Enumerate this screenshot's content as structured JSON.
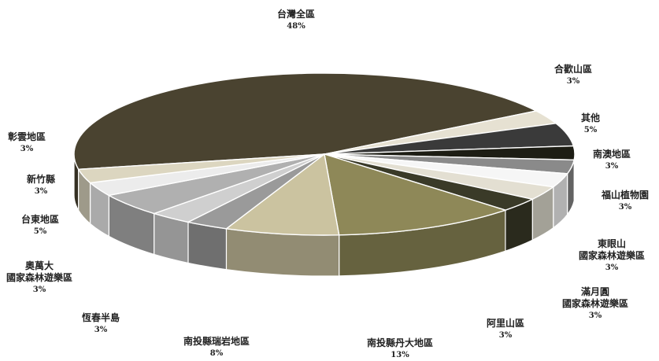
{
  "chart_data": {
    "type": "pie",
    "style": "3d-exploded",
    "slices": [
      {
        "label": [
          "台灣全區"
        ],
        "pct_label": "48%",
        "value": 48,
        "color": "#4a4330"
      },
      {
        "label": [
          "合歡山區"
        ],
        "pct_label": "3%",
        "value": 3,
        "color": "#e6e1d2"
      },
      {
        "label": [
          "其他"
        ],
        "pct_label": "5%",
        "value": 5,
        "color": "#3a3a3a"
      },
      {
        "label": [
          "南澳地區"
        ],
        "pct_label": "3%",
        "value": 3,
        "color": "#1d1d14"
      },
      {
        "label": [
          "福山植物園"
        ],
        "pct_label": "3%",
        "value": 3,
        "color": "#8a8a8a"
      },
      {
        "label": [
          "東眼山",
          "國家森林遊樂區"
        ],
        "pct_label": "3%",
        "value": 3,
        "color": "#f6f6f6"
      },
      {
        "label": [
          "滿月圓",
          "國家森林遊樂區"
        ],
        "pct_label": "3%",
        "value": 3,
        "color": "#e3dfd2"
      },
      {
        "label": [
          "阿里山區"
        ],
        "pct_label": "3%",
        "value": 3,
        "color": "#3a3a28"
      },
      {
        "label": [
          "南投縣丹大地區"
        ],
        "pct_label": "13%",
        "value": 13,
        "color": "#8e8858"
      },
      {
        "label": [
          "南投縣瑞岩地區"
        ],
        "pct_label": "8%",
        "value": 8,
        "color": "#cbc3a0"
      },
      {
        "label": [
          "恆春半島"
        ],
        "pct_label": "3%",
        "value": 3,
        "color": "#9a9a9a"
      },
      {
        "label": [
          "奧萬大",
          "國家森林遊樂區"
        ],
        "pct_label": "3%",
        "value": 3,
        "color": "#cfcfcf"
      },
      {
        "label": [
          "台東地區"
        ],
        "pct_label": "5%",
        "value": 5,
        "color": "#b0b0b0"
      },
      {
        "label": [
          "新竹縣"
        ],
        "pct_label": "3%",
        "value": 3,
        "color": "#ececec"
      },
      {
        "label": [
          "彰雲地區"
        ],
        "pct_label": "3%",
        "value": 3,
        "color": "#dcd6c0"
      }
    ]
  }
}
